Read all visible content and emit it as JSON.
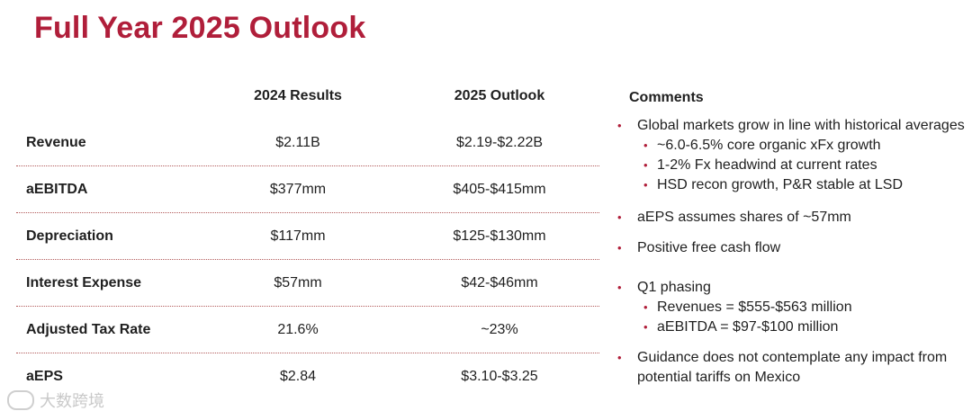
{
  "title": "Full Year 2025 Outlook",
  "columns": {
    "results_2024": "2024 Results",
    "outlook_2025": "2025 Outlook"
  },
  "rows": [
    {
      "label": "Revenue",
      "v2024": "$2.11B",
      "v2025": "$2.19-$2.22B"
    },
    {
      "label": "aEBITDA",
      "v2024": "$377mm",
      "v2025": "$405-$415mm"
    },
    {
      "label": "Depreciation",
      "v2024": "$117mm",
      "v2025": "$125-$130mm"
    },
    {
      "label": "Interest Expense",
      "v2024": "$57mm",
      "v2025": "$42-$46mm"
    },
    {
      "label": "Adjusted Tax Rate",
      "v2024": "21.6%",
      "v2025": "~23%"
    },
    {
      "label": "aEPS",
      "v2024": "$2.84",
      "v2025": "$3.10-$3.25"
    }
  ],
  "comments": {
    "heading": "Comments",
    "bullet_glyph": "•",
    "items": [
      {
        "text": "Global markets grow in line with historical averages",
        "subs": [
          "~6.0-6.5% core organic xFx growth",
          "1-2% Fx headwind at current rates",
          "HSD recon growth, P&R stable at LSD"
        ]
      },
      {
        "text": "aEPS assumes shares of ~57mm",
        "subs": []
      },
      {
        "text": "Positive free cash flow",
        "subs": []
      },
      {
        "text": "Q1 phasing",
        "subs": [
          "Revenues = $555-$563 million",
          "aEBITDA = $97-$100 million"
        ]
      },
      {
        "text": "Guidance does not contemplate any impact from potential tariffs on Mexico",
        "subs": []
      }
    ]
  },
  "watermark": "大数跨境",
  "colors": {
    "accent": "#b01e3a",
    "divider": "#b25a5a"
  }
}
